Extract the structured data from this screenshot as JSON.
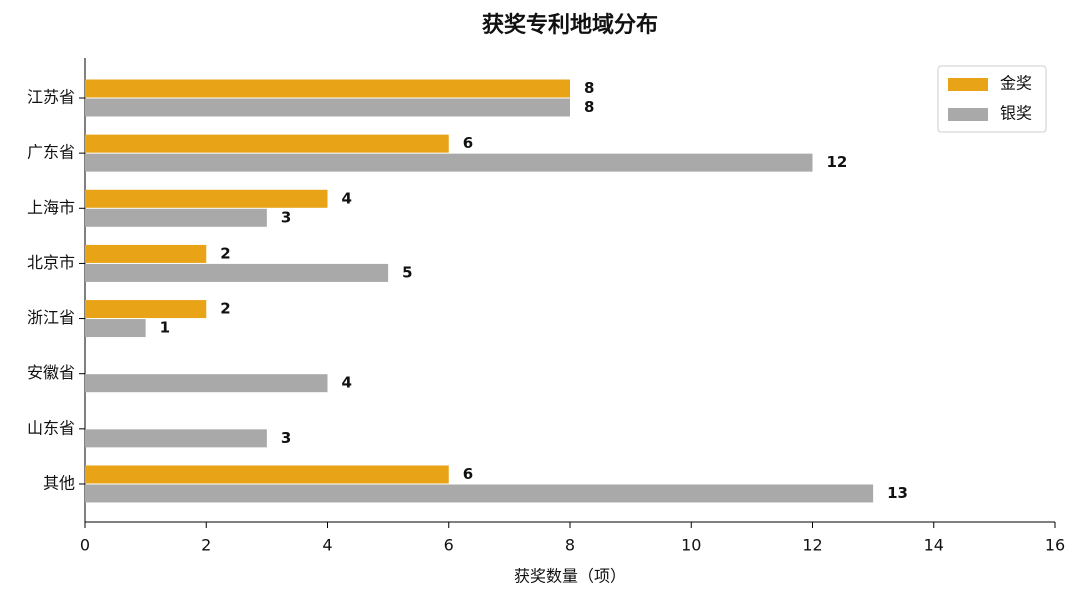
{
  "chart_data": {
    "type": "barh",
    "title": "获奖专利地域分布",
    "x_label": "获奖数量（项）",
    "categories": [
      "江苏省",
      "广东省",
      "上海市",
      "北京市",
      "浙江省",
      "安徽省",
      "山东省",
      "其他"
    ],
    "series": [
      {
        "name": "金奖",
        "color": "#e8a317",
        "values": [
          8,
          6,
          4,
          2,
          2,
          0,
          0,
          6
        ]
      },
      {
        "name": "银奖",
        "color": "#a9a9a9",
        "values": [
          8,
          12,
          3,
          5,
          1,
          4,
          3,
          13
        ]
      }
    ],
    "xlim": [
      0,
      16
    ],
    "xticks": [
      0,
      2,
      4,
      6,
      8,
      10,
      12,
      14,
      16
    ],
    "legend": "upper right"
  }
}
